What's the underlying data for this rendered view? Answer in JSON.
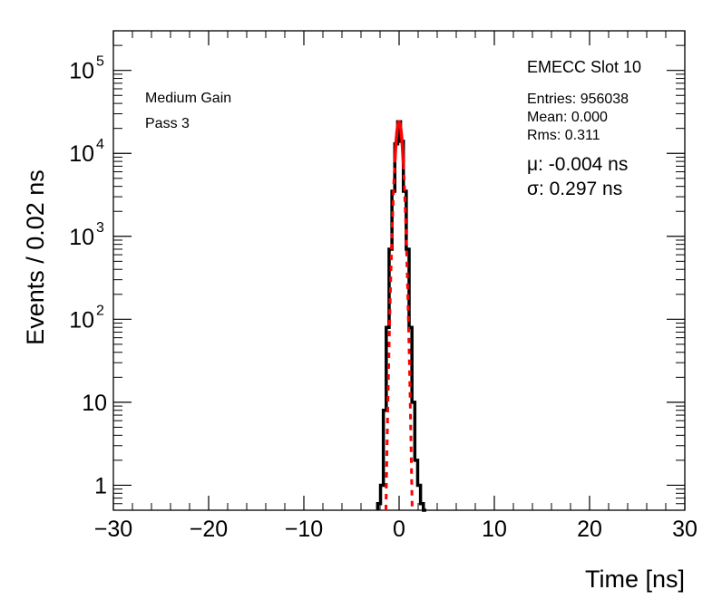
{
  "chart_data": {
    "type": "line",
    "xlabel": "Time [ns]",
    "ylabel": "Events / 0.02 ns",
    "xlim": [
      -30,
      30
    ],
    "ylim": [
      0.5,
      300000
    ],
    "yscale": "log",
    "grid": false,
    "x_ticks": [
      {
        "value": -30,
        "label": "−30"
      },
      {
        "value": -20,
        "label": "−20"
      },
      {
        "value": -10,
        "label": "−10"
      },
      {
        "value": 0,
        "label": "0"
      },
      {
        "value": 10,
        "label": "10"
      },
      {
        "value": 20,
        "label": "20"
      },
      {
        "value": 30,
        "label": "30"
      }
    ],
    "y_ticks": [
      {
        "value": 1,
        "base": "1",
        "exp": ""
      },
      {
        "value": 10,
        "base": "10",
        "exp": ""
      },
      {
        "value": 100,
        "base": "10",
        "exp": "2"
      },
      {
        "value": 1000,
        "base": "10",
        "exp": "3"
      },
      {
        "value": 10000,
        "base": "10",
        "exp": "4"
      },
      {
        "value": 100000,
        "base": "10",
        "exp": "5"
      }
    ],
    "annotations": {
      "left_line1": "Medium Gain",
      "left_line2": "Pass 3",
      "title": "EMECC Slot 10",
      "entries": "Entries: 956038",
      "mean": "Mean: 0.000",
      "rms": "Rms: 0.311",
      "mu": "μ: -0.004 ns",
      "sigma": "σ: 0.297 ns"
    },
    "series": [
      {
        "style": "histogram",
        "color": "#000000",
        "x": [
          -2.1,
          -1.8,
          -1.5,
          -1.2,
          -0.9,
          -0.6,
          -0.3,
          0.0,
          0.3,
          0.6,
          0.9,
          1.2,
          1.5,
          1.8,
          2.1,
          2.4,
          2.7
        ],
        "y": [
          0.6,
          1,
          8,
          80,
          700,
          3500,
          13000,
          24000,
          14000,
          3500,
          700,
          80,
          10,
          2,
          1,
          0.6,
          0.5
        ]
      },
      {
        "style": "gaussian-fit",
        "color": "#ff0000",
        "amplitude": 24000,
        "mu": -0.004,
        "sigma": 0.297,
        "solid_range": [
          -0.45,
          0.45
        ]
      }
    ]
  }
}
